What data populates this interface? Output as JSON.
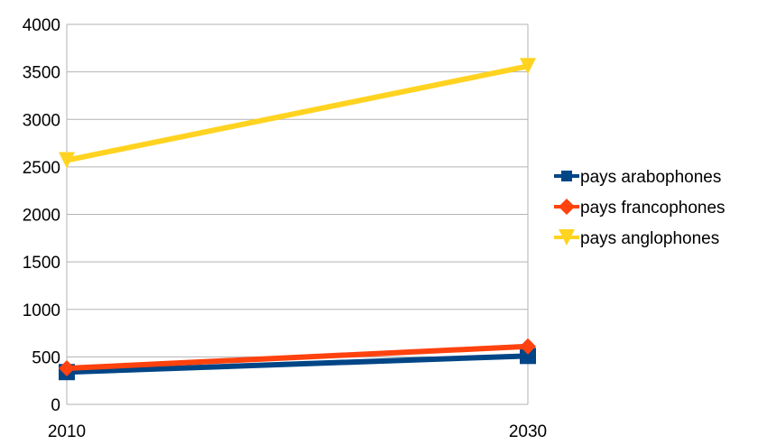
{
  "chart_data": {
    "type": "line",
    "title": "",
    "xlabel": "",
    "ylabel": "",
    "x": [
      "2010",
      "2030"
    ],
    "ylim": [
      0,
      4000
    ],
    "yticks": [
      0,
      500,
      1000,
      1500,
      2000,
      2500,
      3000,
      3500,
      4000
    ],
    "ytick_labels": [
      "0",
      "500",
      "1000",
      "1500",
      "2000",
      "2500",
      "3000",
      "3500",
      "4000"
    ],
    "grid": true,
    "legend_position": "right",
    "series": [
      {
        "name": "pays arabophones",
        "values": [
          340,
          510
        ],
        "color": "#004586",
        "marker": "square"
      },
      {
        "name": "pays francophones",
        "values": [
          380,
          610
        ],
        "color": "#ff420e",
        "marker": "diamond"
      },
      {
        "name": "pays anglophones",
        "values": [
          2570,
          3560
        ],
        "color": "#ffd320",
        "marker": "triangle-down"
      }
    ]
  }
}
